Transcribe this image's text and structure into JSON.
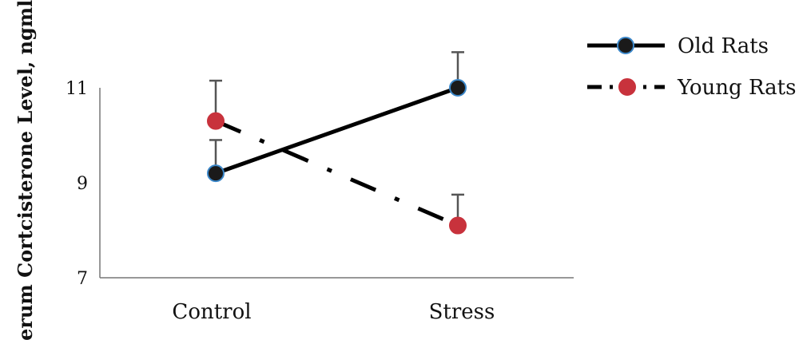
{
  "chart_data": {
    "type": "line",
    "categories": [
      "Control",
      "Stress"
    ],
    "ylabel": "Serum Cortcisterone Level, ngml",
    "ylim": [
      7,
      11
    ],
    "yticks": [
      7,
      9,
      11
    ],
    "grid": false,
    "legend_position": "top-right",
    "series": [
      {
        "name": "Old Rats",
        "values": [
          9.2,
          11.0
        ],
        "error": [
          0.7,
          0.75
        ],
        "line_style": "solid",
        "color": "#000000",
        "marker_color": "#1a1a1a",
        "marker_edge": "#3a86c8"
      },
      {
        "name": "Young Rats",
        "values": [
          10.3,
          8.1
        ],
        "error": [
          0.85,
          0.65
        ],
        "line_style": "dash-dot",
        "color": "#000000",
        "marker_color": "#c8323c",
        "marker_edge": "#c8323c"
      }
    ]
  }
}
